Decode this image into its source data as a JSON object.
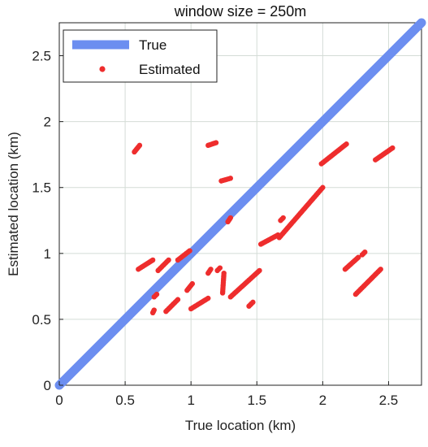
{
  "chart_data": {
    "type": "scatter",
    "title": "window size = 250m",
    "xlabel": "True location (km)",
    "ylabel": "Estimated location (km)",
    "xlim": [
      0,
      2.75
    ],
    "ylim": [
      0,
      2.75
    ],
    "xticks": [
      0,
      0.5,
      1,
      1.5,
      2,
      2.5
    ],
    "yticks": [
      0,
      0.5,
      1,
      1.5,
      2,
      2.5
    ],
    "xtick_labels": [
      "0",
      "0.5",
      "1",
      "1.5",
      "2",
      "2.5"
    ],
    "ytick_labels": [
      "0",
      "0.5",
      "1",
      "1.5",
      "2",
      "2.5"
    ],
    "grid": true,
    "legend_position": "top-left",
    "colors": {
      "true": "#6c8ef0",
      "estimated": "#ee2d2d",
      "grid": "#d4dcd6",
      "axis": "#222222"
    },
    "series": [
      {
        "name": "True",
        "kind": "line",
        "points": [
          [
            0,
            0
          ],
          [
            2.75,
            2.75
          ]
        ]
      },
      {
        "name": "Estimated",
        "kind": "scatter",
        "segments": [
          [
            [
              0.57,
              1.77
            ],
            [
              0.61,
              1.82
            ]
          ],
          [
            [
              1.13,
              1.82
            ],
            [
              1.19,
              1.84
            ]
          ],
          [
            [
              1.23,
              1.55
            ],
            [
              1.3,
              1.57
            ]
          ],
          [
            [
              1.28,
              1.24
            ],
            [
              1.3,
              1.27
            ]
          ],
          [
            [
              0.6,
              0.88
            ],
            [
              0.71,
              0.95
            ]
          ],
          [
            [
              0.75,
              0.87
            ],
            [
              0.83,
              0.95
            ]
          ],
          [
            [
              0.9,
              0.95
            ],
            [
              0.99,
              1.02
            ]
          ],
          [
            [
              1.13,
              0.85
            ],
            [
              1.15,
              0.88
            ]
          ],
          [
            [
              1.2,
              0.87
            ],
            [
              1.22,
              0.89
            ]
          ],
          [
            [
              1.24,
              0.7
            ],
            [
              1.25,
              0.85
            ]
          ],
          [
            [
              0.71,
              0.55
            ],
            [
              0.72,
              0.57
            ]
          ],
          [
            [
              0.72,
              0.67
            ],
            [
              0.74,
              0.69
            ]
          ],
          [
            [
              0.81,
              0.56
            ],
            [
              0.9,
              0.65
            ]
          ],
          [
            [
              0.97,
              0.72
            ],
            [
              1.01,
              0.77
            ]
          ],
          [
            [
              1.0,
              0.58
            ],
            [
              1.13,
              0.66
            ]
          ],
          [
            [
              1.3,
              0.67
            ],
            [
              1.52,
              0.87
            ]
          ],
          [
            [
              1.44,
              0.6
            ],
            [
              1.47,
              0.63
            ]
          ],
          [
            [
              1.53,
              1.07
            ],
            [
              1.66,
              1.14
            ]
          ],
          [
            [
              1.67,
              1.12
            ],
            [
              2.0,
              1.5
            ]
          ],
          [
            [
              1.68,
              1.25
            ],
            [
              1.7,
              1.27
            ]
          ],
          [
            [
              1.99,
              1.68
            ],
            [
              2.18,
              1.83
            ]
          ],
          [
            [
              2.4,
              1.71
            ],
            [
              2.53,
              1.8
            ]
          ],
          [
            [
              2.17,
              0.88
            ],
            [
              2.27,
              0.97
            ]
          ],
          [
            [
              2.3,
              0.99
            ],
            [
              2.32,
              1.01
            ]
          ],
          [
            [
              2.25,
              0.69
            ],
            [
              2.44,
              0.88
            ]
          ]
        ]
      }
    ]
  }
}
